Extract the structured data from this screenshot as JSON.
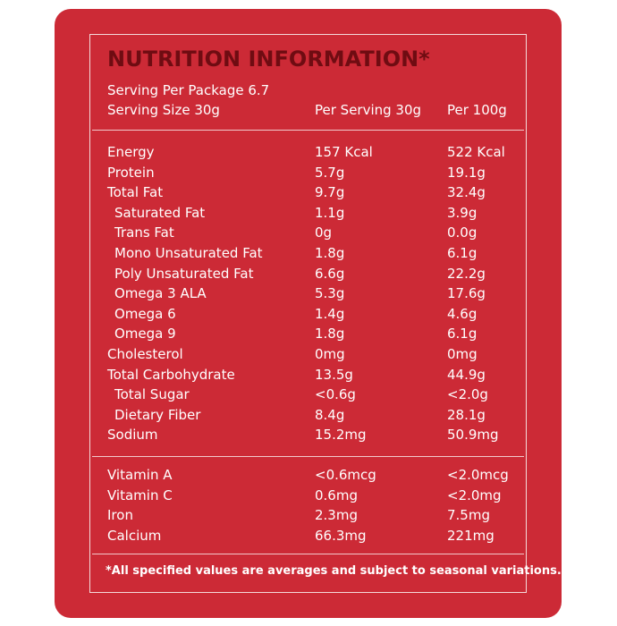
{
  "title": "NUTRITION INFORMATION*",
  "serving_per_package": "Serving Per Package 6.7",
  "serving_size": "Serving Size 30g",
  "col_per_serving": "Per Serving 30g",
  "col_per_100g": "Per 100g",
  "nutrients": [
    {
      "name": "Energy",
      "per_serving": "157 Kcal",
      "per_100g": "522 Kcal",
      "indent": false
    },
    {
      "name": "Protein",
      "per_serving": "5.7g",
      "per_100g": "19.1g",
      "indent": false
    },
    {
      "name": "Total Fat",
      "per_serving": "9.7g",
      "per_100g": "32.4g",
      "indent": false
    },
    {
      "name": "Saturated Fat",
      "per_serving": "1.1g",
      "per_100g": "3.9g",
      "indent": true
    },
    {
      "name": "Trans Fat",
      "per_serving": "0g",
      "per_100g": "0.0g",
      "indent": true
    },
    {
      "name": "Mono Unsaturated Fat",
      "per_serving": "1.8g",
      "per_100g": "6.1g",
      "indent": true
    },
    {
      "name": "Poly Unsaturated Fat",
      "per_serving": "6.6g",
      "per_100g": "22.2g",
      "indent": true
    },
    {
      "name": "Omega 3 ALA",
      "per_serving": "5.3g",
      "per_100g": "17.6g",
      "indent": true
    },
    {
      "name": "Omega 6",
      "per_serving": "1.4g",
      "per_100g": "4.6g",
      "indent": true
    },
    {
      "name": "Omega 9",
      "per_serving": "1.8g",
      "per_100g": "6.1g",
      "indent": true
    },
    {
      "name": "Cholesterol",
      "per_serving": "0mg",
      "per_100g": "0mg",
      "indent": false
    },
    {
      "name": "Total Carbohydrate",
      "per_serving": "13.5g",
      "per_100g": "44.9g",
      "indent": false
    },
    {
      "name": "Total Sugar",
      "per_serving": "<0.6g",
      "per_100g": "<2.0g",
      "indent": true
    },
    {
      "name": "Dietary Fiber",
      "per_serving": "8.4g",
      "per_100g": "28.1g",
      "indent": true
    },
    {
      "name": "Sodium",
      "per_serving": "15.2mg",
      "per_100g": "50.9mg",
      "indent": false
    }
  ],
  "vitamins": [
    {
      "name": "Vitamin A",
      "per_serving": "<0.6mcg",
      "per_100g": "<2.0mcg"
    },
    {
      "name": "Vitamin C",
      "per_serving": "0.6mg",
      "per_100g": "<2.0mg"
    },
    {
      "name": "Iron",
      "per_serving": "2.3mg",
      "per_100g": "7.5mg"
    },
    {
      "name": "Calcium",
      "per_serving": "66.3mg",
      "per_100g": "221mg"
    }
  ],
  "footnote": "*All specified values are averages and subject to seasonal variations.",
  "colors": {
    "panel": "#cc2a36",
    "title": "#6f0c12",
    "text": "#ffffff"
  }
}
